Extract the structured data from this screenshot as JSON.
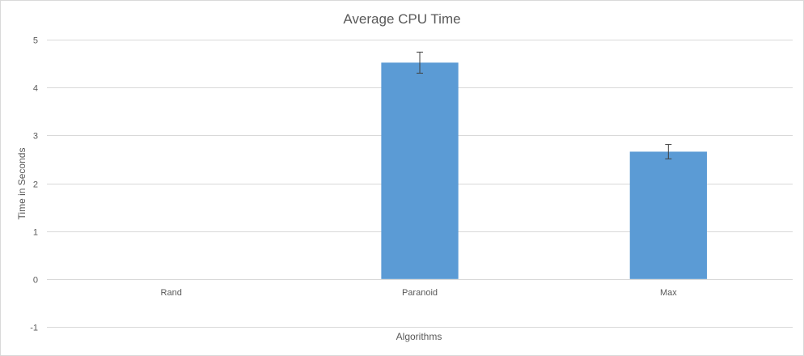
{
  "chart_data": {
    "type": "bar",
    "title": "Average CPU Time",
    "xlabel": "Algorithms",
    "ylabel": "Time in Seconds",
    "categories": [
      "Rand",
      "Paranoid",
      "Max"
    ],
    "series": [
      {
        "values": [
          0,
          4.52,
          2.66
        ],
        "error": [
          0,
          0.22,
          0.15
        ]
      }
    ],
    "ylim": [
      -1,
      5
    ],
    "yticks": [
      "-1",
      "0",
      "1",
      "2",
      "3",
      "4",
      "5"
    ],
    "grid": true,
    "legend": "none",
    "bar_color": "#5B9BD5"
  }
}
